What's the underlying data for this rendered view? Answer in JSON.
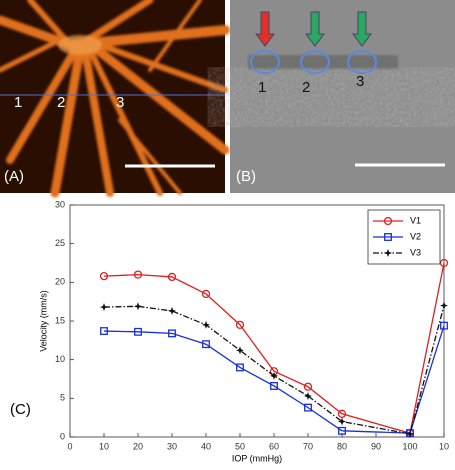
{
  "panels": [
    {
      "label": "(A)",
      "numbers": [
        "1",
        "2",
        "3"
      ]
    },
    {
      "label": "(B)",
      "numbers": [
        "1",
        "2",
        "3"
      ]
    }
  ],
  "chart_data": {
    "type": "line",
    "panel_label": "(C)",
    "x_label": "IOP (mmHg)",
    "y_label": "Velocity (mm/s)",
    "x": [
      10,
      20,
      30,
      40,
      50,
      60,
      70,
      80,
      100,
      110
    ],
    "series": [
      {
        "name": "V1",
        "color": "#e02020",
        "marker": "circle",
        "dash": "solid",
        "values": [
          20.8,
          21,
          20.7,
          18.5,
          14.5,
          8.5,
          6.5,
          3,
          0.5,
          22.5
        ]
      },
      {
        "name": "V2",
        "color": "#1a2ee0",
        "marker": "square",
        "dash": "solid",
        "values": [
          13.7,
          13.6,
          13.4,
          12,
          9,
          6.6,
          3.8,
          0.8,
          0.5,
          14.4
        ]
      },
      {
        "name": "V3",
        "color": "#111111",
        "marker": "star",
        "dash": "dashdot",
        "values": [
          16.8,
          16.9,
          16.3,
          14.5,
          11.2,
          7.9,
          5.3,
          2,
          0.4,
          17
        ]
      }
    ],
    "xlim": [
      0,
      110
    ],
    "xticks": [
      0,
      10,
      20,
      30,
      40,
      50,
      60,
      70,
      80,
      90,
      100,
      {
        "value": 110,
        "label": "10"
      }
    ],
    "ylim": [
      0,
      30
    ],
    "yticks": [
      0,
      5,
      10,
      15,
      20,
      25,
      30
    ],
    "legend": "upper right",
    "grid": false
  }
}
